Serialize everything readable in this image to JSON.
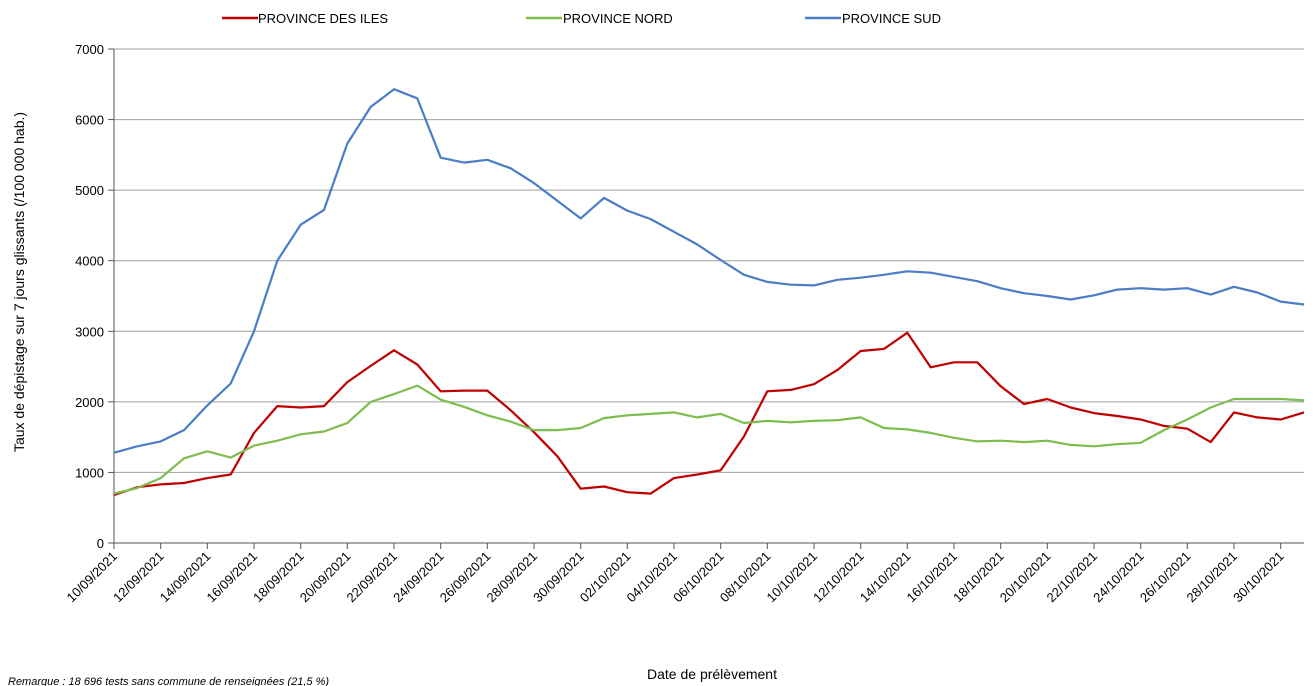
{
  "chart_data": {
    "type": "line",
    "title": "",
    "xlabel": "Date de prélèvement",
    "ylabel": "Taux de dépistage sur 7 jours glissants (/100 000 hab.)",
    "ylim": [
      0,
      7000
    ],
    "yticks": [
      0,
      1000,
      2000,
      3000,
      4000,
      5000,
      6000,
      7000
    ],
    "grid": "horizontal",
    "legend_position": "top",
    "note": "Remarque : 18 696 tests sans commune de renseignées (21,5 %)",
    "x": [
      "10/09/2021",
      "11/09/2021",
      "12/09/2021",
      "13/09/2021",
      "14/09/2021",
      "15/09/2021",
      "16/09/2021",
      "17/09/2021",
      "18/09/2021",
      "19/09/2021",
      "20/09/2021",
      "21/09/2021",
      "22/09/2021",
      "23/09/2021",
      "24/09/2021",
      "25/09/2021",
      "26/09/2021",
      "27/09/2021",
      "28/09/2021",
      "29/09/2021",
      "30/09/2021",
      "01/10/2021",
      "02/10/2021",
      "03/10/2021",
      "04/10/2021",
      "05/10/2021",
      "06/10/2021",
      "07/10/2021",
      "08/10/2021",
      "09/10/2021",
      "10/10/2021",
      "11/10/2021",
      "12/10/2021",
      "13/10/2021",
      "14/10/2021",
      "15/10/2021",
      "16/10/2021",
      "17/10/2021",
      "18/10/2021",
      "19/10/2021",
      "20/10/2021",
      "21/10/2021",
      "22/10/2021",
      "23/10/2021",
      "24/10/2021",
      "25/10/2021",
      "26/10/2021",
      "27/10/2021",
      "28/10/2021",
      "29/10/2021",
      "30/10/2021",
      "31/10/2021"
    ],
    "tick_labels": [
      "10/09/2021",
      "12/09/2021",
      "14/09/2021",
      "16/09/2021",
      "18/09/2021",
      "20/09/2021",
      "22/09/2021",
      "24/09/2021",
      "26/09/2021",
      "28/09/2021",
      "30/09/2021",
      "02/10/2021",
      "04/10/2021",
      "06/10/2021",
      "08/10/2021",
      "10/10/2021",
      "12/10/2021",
      "14/10/2021",
      "16/10/2021",
      "18/10/2021",
      "20/10/2021",
      "22/10/2021",
      "24/10/2021",
      "26/10/2021",
      "28/10/2021",
      "30/10/2021"
    ],
    "series": [
      {
        "name": "PROVINCE DES ILES",
        "color": "#c00000",
        "values": [
          680,
          790,
          830,
          850,
          920,
          970,
          1560,
          1940,
          1920,
          1940,
          2280,
          2510,
          2730,
          2530,
          2150,
          2160,
          2160,
          1880,
          1570,
          1230,
          770,
          800,
          720,
          700,
          920,
          970,
          1030,
          1510,
          2150,
          2170,
          2250,
          2450,
          2720,
          2750,
          2980,
          2490,
          2560,
          2560,
          2220,
          1970,
          2040,
          1920,
          1840,
          1800,
          1750,
          1660,
          1620,
          1430,
          1850,
          1780,
          1750,
          1850
        ]
      },
      {
        "name": "PROVINCE NORD",
        "color": "#7cbd4f",
        "values": [
          700,
          780,
          920,
          1200,
          1300,
          1210,
          1380,
          1450,
          1540,
          1580,
          1700,
          2000,
          2110,
          2230,
          2030,
          1930,
          1810,
          1720,
          1600,
          1600,
          1630,
          1770,
          1810,
          1830,
          1850,
          1780,
          1830,
          1700,
          1730,
          1710,
          1730,
          1740,
          1780,
          1630,
          1610,
          1560,
          1490,
          1440,
          1450,
          1430,
          1450,
          1390,
          1370,
          1400,
          1420,
          1600,
          1750,
          1920,
          2040,
          2040,
          2040,
          2020
        ]
      },
      {
        "name": "PROVINCE SUD",
        "color": "#4a7dc4",
        "values": [
          1280,
          1370,
          1440,
          1600,
          1950,
          2260,
          3000,
          4000,
          4510,
          4720,
          5660,
          6180,
          6430,
          6300,
          5460,
          5390,
          5430,
          5310,
          5100,
          4850,
          4600,
          4890,
          4710,
          4590,
          4410,
          4230,
          4010,
          3800,
          3700,
          3660,
          3650,
          3730,
          3760,
          3800,
          3850,
          3830,
          3770,
          3710,
          3610,
          3540,
          3500,
          3450,
          3510,
          3590,
          3610,
          3590,
          3610,
          3520,
          3630,
          3550,
          3420,
          3380
        ]
      }
    ]
  }
}
